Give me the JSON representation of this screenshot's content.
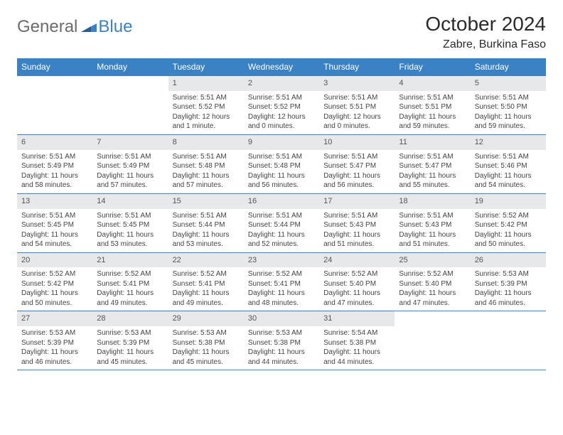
{
  "logo": {
    "general": "General",
    "blue": "Blue"
  },
  "title": "October 2024",
  "location": "Zabre, Burkina Faso",
  "colors": {
    "header_bg": "#3b82c4",
    "header_fg": "#ffffff",
    "daynum_bg": "#e7e8ea",
    "rule": "#3b82c4",
    "logo_gray": "#6b6b6b",
    "logo_blue": "#3b82c4"
  },
  "weekdays": [
    "Sunday",
    "Monday",
    "Tuesday",
    "Wednesday",
    "Thursday",
    "Friday",
    "Saturday"
  ],
  "weeks": [
    [
      null,
      null,
      {
        "n": "1",
        "sr": "5:51 AM",
        "ss": "5:52 PM",
        "dl": "12 hours and 1 minute."
      },
      {
        "n": "2",
        "sr": "5:51 AM",
        "ss": "5:52 PM",
        "dl": "12 hours and 0 minutes."
      },
      {
        "n": "3",
        "sr": "5:51 AM",
        "ss": "5:51 PM",
        "dl": "12 hours and 0 minutes."
      },
      {
        "n": "4",
        "sr": "5:51 AM",
        "ss": "5:51 PM",
        "dl": "11 hours and 59 minutes."
      },
      {
        "n": "5",
        "sr": "5:51 AM",
        "ss": "5:50 PM",
        "dl": "11 hours and 59 minutes."
      }
    ],
    [
      {
        "n": "6",
        "sr": "5:51 AM",
        "ss": "5:49 PM",
        "dl": "11 hours and 58 minutes."
      },
      {
        "n": "7",
        "sr": "5:51 AM",
        "ss": "5:49 PM",
        "dl": "11 hours and 57 minutes."
      },
      {
        "n": "8",
        "sr": "5:51 AM",
        "ss": "5:48 PM",
        "dl": "11 hours and 57 minutes."
      },
      {
        "n": "9",
        "sr": "5:51 AM",
        "ss": "5:48 PM",
        "dl": "11 hours and 56 minutes."
      },
      {
        "n": "10",
        "sr": "5:51 AM",
        "ss": "5:47 PM",
        "dl": "11 hours and 56 minutes."
      },
      {
        "n": "11",
        "sr": "5:51 AM",
        "ss": "5:47 PM",
        "dl": "11 hours and 55 minutes."
      },
      {
        "n": "12",
        "sr": "5:51 AM",
        "ss": "5:46 PM",
        "dl": "11 hours and 54 minutes."
      }
    ],
    [
      {
        "n": "13",
        "sr": "5:51 AM",
        "ss": "5:45 PM",
        "dl": "11 hours and 54 minutes."
      },
      {
        "n": "14",
        "sr": "5:51 AM",
        "ss": "5:45 PM",
        "dl": "11 hours and 53 minutes."
      },
      {
        "n": "15",
        "sr": "5:51 AM",
        "ss": "5:44 PM",
        "dl": "11 hours and 53 minutes."
      },
      {
        "n": "16",
        "sr": "5:51 AM",
        "ss": "5:44 PM",
        "dl": "11 hours and 52 minutes."
      },
      {
        "n": "17",
        "sr": "5:51 AM",
        "ss": "5:43 PM",
        "dl": "11 hours and 51 minutes."
      },
      {
        "n": "18",
        "sr": "5:51 AM",
        "ss": "5:43 PM",
        "dl": "11 hours and 51 minutes."
      },
      {
        "n": "19",
        "sr": "5:52 AM",
        "ss": "5:42 PM",
        "dl": "11 hours and 50 minutes."
      }
    ],
    [
      {
        "n": "20",
        "sr": "5:52 AM",
        "ss": "5:42 PM",
        "dl": "11 hours and 50 minutes."
      },
      {
        "n": "21",
        "sr": "5:52 AM",
        "ss": "5:41 PM",
        "dl": "11 hours and 49 minutes."
      },
      {
        "n": "22",
        "sr": "5:52 AM",
        "ss": "5:41 PM",
        "dl": "11 hours and 49 minutes."
      },
      {
        "n": "23",
        "sr": "5:52 AM",
        "ss": "5:41 PM",
        "dl": "11 hours and 48 minutes."
      },
      {
        "n": "24",
        "sr": "5:52 AM",
        "ss": "5:40 PM",
        "dl": "11 hours and 47 minutes."
      },
      {
        "n": "25",
        "sr": "5:52 AM",
        "ss": "5:40 PM",
        "dl": "11 hours and 47 minutes."
      },
      {
        "n": "26",
        "sr": "5:53 AM",
        "ss": "5:39 PM",
        "dl": "11 hours and 46 minutes."
      }
    ],
    [
      {
        "n": "27",
        "sr": "5:53 AM",
        "ss": "5:39 PM",
        "dl": "11 hours and 46 minutes."
      },
      {
        "n": "28",
        "sr": "5:53 AM",
        "ss": "5:39 PM",
        "dl": "11 hours and 45 minutes."
      },
      {
        "n": "29",
        "sr": "5:53 AM",
        "ss": "5:38 PM",
        "dl": "11 hours and 45 minutes."
      },
      {
        "n": "30",
        "sr": "5:53 AM",
        "ss": "5:38 PM",
        "dl": "11 hours and 44 minutes."
      },
      {
        "n": "31",
        "sr": "5:54 AM",
        "ss": "5:38 PM",
        "dl": "11 hours and 44 minutes."
      },
      null,
      null
    ]
  ],
  "labels": {
    "sunrise": "Sunrise: ",
    "sunset": "Sunset: ",
    "daylight": "Daylight: "
  }
}
